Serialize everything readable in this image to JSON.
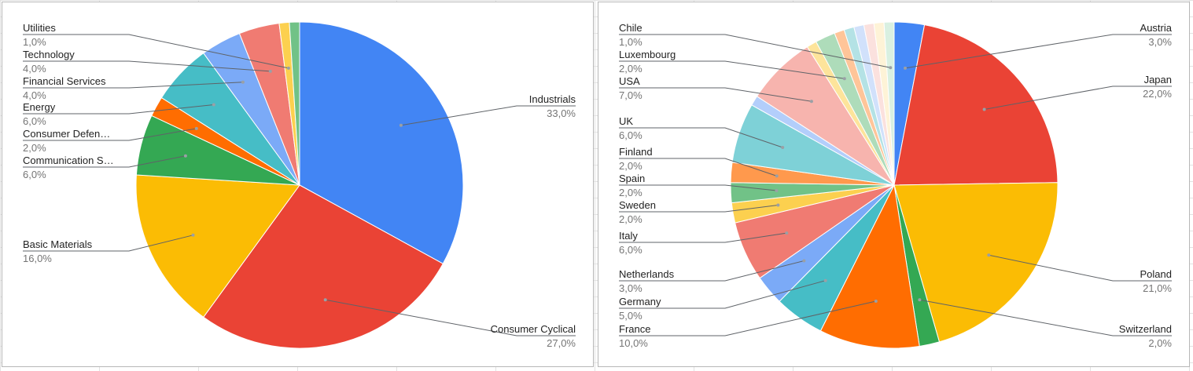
{
  "chart_data": [
    {
      "type": "pie",
      "legend": "labeled",
      "slices": [
        {
          "label": "Industrials",
          "display_value": "33,0%",
          "value": 33,
          "color": "#4285f4"
        },
        {
          "label": "Consumer Cyclical",
          "display_value": "27,0%",
          "value": 27,
          "color": "#ea4335"
        },
        {
          "label": "Basic Materials",
          "display_value": "16,0%",
          "value": 16,
          "color": "#fbbc04"
        },
        {
          "label": "Communication S…",
          "display_value": "6,0%",
          "value": 6,
          "color": "#34a853"
        },
        {
          "label": "Consumer Defen…",
          "display_value": "2,0%",
          "value": 2,
          "color": "#ff6d01"
        },
        {
          "label": "Energy",
          "display_value": "6,0%",
          "value": 6,
          "color": "#46bdc6"
        },
        {
          "label": "Financial Services",
          "display_value": "4,0%",
          "value": 4,
          "color": "#7baaf7"
        },
        {
          "label": "Technology",
          "display_value": "4,0%",
          "value": 4,
          "color": "#f07b72"
        },
        {
          "label": "Utilities",
          "display_value": "1,0%",
          "value": 1,
          "color": "#fcd04f"
        },
        {
          "label": "",
          "display_value": "",
          "value": 1,
          "color": "#71c287"
        }
      ]
    },
    {
      "type": "pie",
      "legend": "labeled",
      "slices": [
        {
          "label": "Austria",
          "display_value": "3,0%",
          "value": 3,
          "color": "#4285f4"
        },
        {
          "label": "Japan",
          "display_value": "22,0%",
          "value": 22,
          "color": "#ea4335"
        },
        {
          "label": "Poland",
          "display_value": "21,0%",
          "value": 21,
          "color": "#fbbc04"
        },
        {
          "label": "Switzerland",
          "display_value": "2,0%",
          "value": 2,
          "color": "#34a853"
        },
        {
          "label": "France",
          "display_value": "10,0%",
          "value": 10,
          "color": "#ff6d01"
        },
        {
          "label": "Germany",
          "display_value": "5,0%",
          "value": 5,
          "color": "#46bdc6"
        },
        {
          "label": "Netherlands",
          "display_value": "3,0%",
          "value": 3,
          "color": "#7baaf7"
        },
        {
          "label": "Italy",
          "display_value": "6,0%",
          "value": 6,
          "color": "#f07b72"
        },
        {
          "label": "Sweden",
          "display_value": "2,0%",
          "value": 2,
          "color": "#fcd04f"
        },
        {
          "label": "Spain",
          "display_value": "2,0%",
          "value": 2,
          "color": "#71c287"
        },
        {
          "label": "Finland",
          "display_value": "2,0%",
          "value": 2,
          "color": "#ff994d"
        },
        {
          "label": "UK",
          "display_value": "6,0%",
          "value": 6,
          "color": "#7ed1d7"
        },
        {
          "label": "",
          "display_value": "",
          "value": 1,
          "color": "#b3cefb"
        },
        {
          "label": "USA",
          "display_value": "7,0%",
          "value": 7,
          "color": "#f7b4ae"
        },
        {
          "label": "",
          "display_value": "",
          "value": 1,
          "color": "#fde49b"
        },
        {
          "label": "Luxembourg",
          "display_value": "2,0%",
          "value": 2,
          "color": "#aedcba"
        },
        {
          "label": "",
          "display_value": "",
          "value": 1,
          "color": "#ffc599"
        },
        {
          "label": "",
          "display_value": "",
          "value": 1,
          "color": "#b4e2e5"
        },
        {
          "label": "",
          "display_value": "",
          "value": 1,
          "color": "#d1e1fb"
        },
        {
          "label": "",
          "display_value": "",
          "value": 1,
          "color": "#fbe1de"
        },
        {
          "label": "",
          "display_value": "",
          "value": 1,
          "color": "#fef3d7"
        },
        {
          "label": "Chile",
          "display_value": "1,0%",
          "value": 1,
          "color": "#d9f0e1"
        }
      ]
    }
  ]
}
